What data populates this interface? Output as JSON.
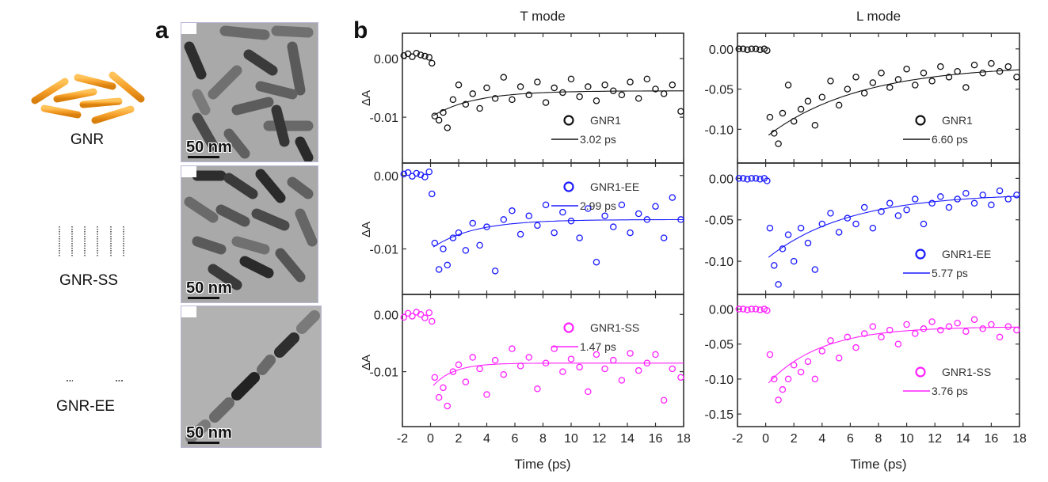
{
  "panel_labels": {
    "a": "a",
    "b": "b"
  },
  "illustrations": [
    {
      "label": "GNR"
    },
    {
      "label": "GNR-SS"
    },
    {
      "label": "GNR-EE"
    }
  ],
  "tem_images": [
    {
      "scale_label": "50 nm"
    },
    {
      "scale_label": "50 nm"
    },
    {
      "scale_label": "50 nm"
    }
  ],
  "colors": {
    "gnr1": "#111111",
    "gnr1_ee": "#1a1aff",
    "gnr1_ss": "#ff22ff",
    "rod": "#f5a02a"
  },
  "chart_data": {
    "type": "scatter",
    "column_titles": [
      "T mode",
      "L mode"
    ],
    "xlabel": "Time (ps)",
    "ylabel": "ΔA",
    "xlim": [
      -2,
      18
    ],
    "xticks": [
      -2,
      0,
      2,
      4,
      6,
      8,
      10,
      12,
      14,
      16,
      18
    ],
    "x": [
      -1.9,
      -1.6,
      -1.3,
      -1.0,
      -0.7,
      -0.4,
      -0.1,
      0.1,
      0.3,
      0.6,
      0.9,
      1.2,
      1.6,
      2.0,
      2.5,
      3.0,
      3.5,
      4.0,
      4.6,
      5.2,
      5.8,
      6.4,
      7.0,
      7.6,
      8.2,
      8.8,
      9.4,
      10.0,
      10.6,
      11.2,
      11.8,
      12.4,
      13.0,
      13.6,
      14.2,
      14.8,
      15.4,
      16.0,
      16.6,
      17.2,
      17.8
    ],
    "panels": [
      {
        "mode": "T mode",
        "name": "GNR1",
        "fit_label": "3.02 ps",
        "color": "#111111",
        "ylim": [
          -0.0178,
          0.0043
        ],
        "yticks": [
          0.0,
          -0.01
        ],
        "ytick_labels": [
          "0.00",
          "-0.01"
        ],
        "fit": {
          "A": -0.0045,
          "tau": 3.02,
          "C": -0.0055
        },
        "y": [
          0.0005,
          0.0008,
          0.0003,
          0.0009,
          0.0006,
          0.0004,
          0.0002,
          -0.0008,
          -0.0098,
          -0.0105,
          -0.0092,
          -0.0118,
          -0.007,
          -0.0045,
          -0.0078,
          -0.006,
          -0.0085,
          -0.005,
          -0.0068,
          -0.0032,
          -0.007,
          -0.0048,
          -0.0062,
          -0.004,
          -0.0075,
          -0.005,
          -0.0058,
          -0.0035,
          -0.0065,
          -0.0048,
          -0.0072,
          -0.0045,
          -0.0055,
          -0.0062,
          -0.004,
          -0.0068,
          -0.0035,
          -0.0052,
          -0.006,
          -0.0045,
          -0.009
        ]
      },
      {
        "mode": "L mode",
        "name": "GNR1",
        "fit_label": "6.60 ps",
        "color": "#111111",
        "ylim": [
          -0.142,
          0.0195
        ],
        "yticks": [
          0.0,
          -0.05,
          -0.1
        ],
        "ytick_labels": [
          "0.00",
          "-0.05",
          "-0.10"
        ],
        "fit": {
          "A": -0.09,
          "tau": 6.6,
          "C": -0.02
        },
        "y": [
          0.0,
          0.0,
          -0.001,
          0.0,
          0.0,
          -0.001,
          0.0,
          -0.002,
          -0.085,
          -0.105,
          -0.118,
          -0.08,
          -0.045,
          -0.09,
          -0.075,
          -0.065,
          -0.095,
          -0.06,
          -0.04,
          -0.07,
          -0.05,
          -0.035,
          -0.055,
          -0.042,
          -0.03,
          -0.048,
          -0.038,
          -0.025,
          -0.045,
          -0.03,
          -0.04,
          -0.022,
          -0.035,
          -0.028,
          -0.048,
          -0.02,
          -0.03,
          -0.018,
          -0.028,
          -0.022,
          -0.035
        ]
      },
      {
        "mode": "T mode",
        "name": "GNR1-EE",
        "fit_label": "2.99 ps",
        "color": "#1a1aff",
        "ylim": [
          -0.0162,
          0.0017
        ],
        "yticks": [
          0.0,
          -0.01
        ],
        "ytick_labels": [
          "0.00",
          "-0.01"
        ],
        "fit": {
          "A": -0.004,
          "tau": 2.99,
          "C": -0.006
        },
        "y": [
          0.0002,
          0.0004,
          -0.0001,
          0.0003,
          0.0001,
          -0.0002,
          0.0005,
          -0.0025,
          -0.0092,
          -0.0128,
          -0.01,
          -0.0122,
          -0.0085,
          -0.0078,
          -0.0102,
          -0.0065,
          -0.0095,
          -0.007,
          -0.013,
          -0.006,
          -0.0048,
          -0.008,
          -0.0055,
          -0.0068,
          -0.004,
          -0.0078,
          -0.005,
          -0.0062,
          -0.0085,
          -0.0045,
          -0.0118,
          -0.0055,
          -0.007,
          -0.004,
          -0.0078,
          -0.0052,
          -0.006,
          -0.0042,
          -0.0085,
          -0.003,
          -0.006
        ]
      },
      {
        "mode": "L mode",
        "name": "GNR1-EE",
        "fit_label": "5.77 ps",
        "color": "#1a1aff",
        "ylim": [
          -0.14,
          0.0185
        ],
        "yticks": [
          0.0,
          -0.05,
          -0.1
        ],
        "ytick_labels": [
          "0.00",
          "-0.05",
          "-0.10"
        ],
        "fit": {
          "A": -0.08,
          "tau": 5.77,
          "C": -0.018
        },
        "y": [
          0.0,
          0.0,
          -0.001,
          0.0,
          0.0,
          -0.001,
          0.0,
          -0.003,
          -0.06,
          -0.105,
          -0.128,
          -0.085,
          -0.068,
          -0.1,
          -0.06,
          -0.078,
          -0.11,
          -0.055,
          -0.042,
          -0.065,
          -0.048,
          -0.055,
          -0.035,
          -0.06,
          -0.04,
          -0.03,
          -0.045,
          -0.038,
          -0.025,
          -0.055,
          -0.03,
          -0.022,
          -0.035,
          -0.025,
          -0.018,
          -0.03,
          -0.02,
          -0.032,
          -0.015,
          -0.025,
          -0.02
        ]
      },
      {
        "mode": "T mode",
        "name": "GNR1-SS",
        "fit_label": "1.47 ps",
        "color": "#ff22ff",
        "ylim": [
          -0.0196,
          0.0035
        ],
        "yticks": [
          0.0,
          -0.01
        ],
        "ytick_labels": [
          "0.00",
          "-0.01"
        ],
        "fit": {
          "A": -0.0045,
          "tau": 1.47,
          "C": -0.0085
        },
        "y": [
          -0.0005,
          0.0002,
          -0.0003,
          0.0004,
          0.0,
          -0.0006,
          0.0003,
          -0.0012,
          -0.011,
          -0.0145,
          -0.0128,
          -0.016,
          -0.01,
          -0.0088,
          -0.0118,
          -0.0075,
          -0.0095,
          -0.014,
          -0.008,
          -0.0105,
          -0.006,
          -0.009,
          -0.0075,
          -0.013,
          -0.0085,
          -0.006,
          -0.01,
          -0.0078,
          -0.0092,
          -0.0135,
          -0.007,
          -0.0095,
          -0.008,
          -0.0115,
          -0.0068,
          -0.0098,
          -0.0085,
          -0.007,
          -0.015,
          -0.0095,
          -0.011
        ]
      },
      {
        "mode": "L mode",
        "name": "GNR1-SS",
        "fit_label": "3.76 ps",
        "color": "#ff22ff",
        "ylim": [
          -0.168,
          0.021
        ],
        "yticks": [
          0.0,
          -0.05,
          -0.1,
          -0.15
        ],
        "ytick_labels": [
          "0.00",
          "-0.05",
          "-0.10",
          "-0.15"
        ],
        "fit": {
          "A": -0.085,
          "tau": 3.76,
          "C": -0.025
        },
        "y": [
          0.0,
          0.0,
          -0.001,
          0.0,
          0.0,
          -0.001,
          0.0,
          -0.002,
          -0.065,
          -0.1,
          -0.13,
          -0.115,
          -0.1,
          -0.08,
          -0.09,
          -0.075,
          -0.1,
          -0.06,
          -0.045,
          -0.07,
          -0.04,
          -0.055,
          -0.035,
          -0.025,
          -0.04,
          -0.03,
          -0.05,
          -0.022,
          -0.035,
          -0.028,
          -0.018,
          -0.03,
          -0.025,
          -0.02,
          -0.032,
          -0.015,
          -0.028,
          -0.022,
          -0.04,
          -0.025,
          -0.03
        ]
      }
    ]
  }
}
